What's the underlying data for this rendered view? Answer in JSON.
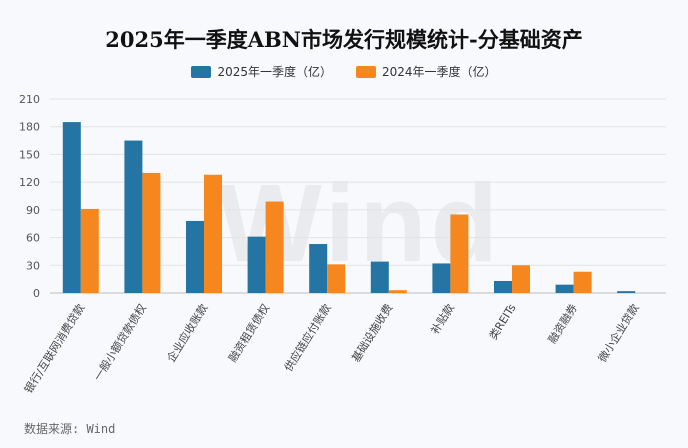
{
  "title": "2025年一季度ABN市场发行规模统计-分基础资产",
  "source": "数据来源: Wind",
  "watermark": "Wind",
  "colors": {
    "series1": "#2475a3",
    "series2": "#f6871f"
  },
  "chart_data": {
    "type": "bar",
    "title": "2025年一季度ABN市场发行规模统计-分基础资产",
    "xlabel": "",
    "ylabel": "",
    "ylim": [
      0,
      210
    ],
    "yticks": [
      0,
      30,
      60,
      90,
      120,
      150,
      180,
      210
    ],
    "legend_position": "top-center",
    "categories": [
      "银行/互联网消费贷款",
      "一般小额贷款债权",
      "企业应收账款",
      "融资租赁债权",
      "供应链应付账款",
      "基础设施收费",
      "补贴款",
      "类REITs",
      "融资融券",
      "微小企业贷款"
    ],
    "series": [
      {
        "name": "2025年一季度（亿）",
        "values": [
          185,
          165,
          78,
          61,
          53,
          34,
          32,
          13,
          9,
          2
        ]
      },
      {
        "name": "2024年一季度（亿）",
        "values": [
          91,
          130,
          128,
          99,
          31,
          3,
          85,
          30,
          23,
          0
        ]
      }
    ]
  }
}
